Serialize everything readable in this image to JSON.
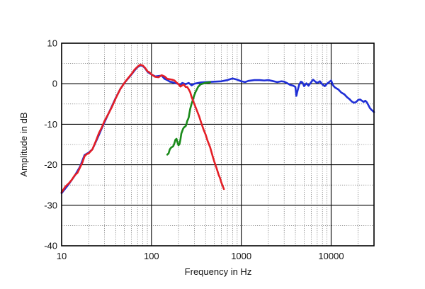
{
  "chart_data": {
    "type": "line",
    "title": "",
    "xlabel": "Frequency  in Hz",
    "ylabel": "Amplitude in dB",
    "xscale": "log",
    "xlim": [
      10,
      30000
    ],
    "ylim": [
      -40,
      10
    ],
    "grid": true,
    "x_tick_labels": [
      {
        "value": 10,
        "label": "10"
      },
      {
        "value": 100,
        "label": "100"
      },
      {
        "value": 1000,
        "label": "1000"
      },
      {
        "value": 10000,
        "label": "10000"
      }
    ],
    "y_tick_labels": [
      {
        "value": 10,
        "label": "10"
      },
      {
        "value": 0,
        "label": "0"
      },
      {
        "value": -10,
        "label": "-10"
      },
      {
        "value": -20,
        "label": "-20"
      },
      {
        "value": -30,
        "label": "-30"
      },
      {
        "value": -40,
        "label": "-40"
      }
    ],
    "series": [
      {
        "color": "#1f2fd6",
        "points": [
          [
            10,
            -27
          ],
          [
            12,
            -24.8
          ],
          [
            14,
            -22.7
          ],
          [
            16,
            -20.5
          ],
          [
            18,
            -17.6
          ],
          [
            20,
            -17.0
          ],
          [
            22,
            -16.2
          ],
          [
            25,
            -13.5
          ],
          [
            28,
            -11.0
          ],
          [
            30,
            -9.5
          ],
          [
            35,
            -6.3
          ],
          [
            40,
            -3.5
          ],
          [
            45,
            -1.3
          ],
          [
            50,
            0.2
          ],
          [
            55,
            1.3
          ],
          [
            60,
            2.3
          ],
          [
            65,
            3.3
          ],
          [
            70,
            4.1
          ],
          [
            75,
            4.5
          ],
          [
            80,
            4.4
          ],
          [
            85,
            3.8
          ],
          [
            90,
            3.0
          ],
          [
            95,
            2.6
          ],
          [
            100,
            2.3
          ],
          [
            110,
            1.8
          ],
          [
            120,
            1.9
          ],
          [
            130,
            2.0
          ],
          [
            140,
            1.2
          ],
          [
            150,
            0.9
          ],
          [
            160,
            0.5
          ],
          [
            170,
            0.4
          ],
          [
            180,
            0.2
          ],
          [
            190,
            0.1
          ],
          [
            200,
            -0.1
          ],
          [
            210,
            -0.3
          ],
          [
            220,
            0.2
          ],
          [
            240,
            -0.1
          ],
          [
            260,
            0.2
          ],
          [
            280,
            -0.4
          ],
          [
            300,
            0.0
          ],
          [
            350,
            0.3
          ],
          [
            400,
            0.4
          ],
          [
            500,
            0.5
          ],
          [
            600,
            0.6
          ],
          [
            700,
            0.9
          ],
          [
            800,
            1.3
          ],
          [
            900,
            1.0
          ],
          [
            1000,
            0.6
          ],
          [
            1100,
            0.4
          ],
          [
            1200,
            0.7
          ],
          [
            1400,
            0.9
          ],
          [
            1600,
            0.9
          ],
          [
            1800,
            0.8
          ],
          [
            2000,
            0.9
          ],
          [
            2200,
            0.7
          ],
          [
            2500,
            0.4
          ],
          [
            2800,
            0.6
          ],
          [
            3000,
            0.5
          ],
          [
            3200,
            0.2
          ],
          [
            3500,
            -0.3
          ],
          [
            3800,
            -0.5
          ],
          [
            4000,
            -0.8
          ],
          [
            4100,
            -3.0
          ],
          [
            4200,
            -2.0
          ],
          [
            4400,
            -0.3
          ],
          [
            4600,
            0.5
          ],
          [
            4800,
            0.3
          ],
          [
            5000,
            -0.6
          ],
          [
            5300,
            0.1
          ],
          [
            5600,
            -0.5
          ],
          [
            6000,
            0.4
          ],
          [
            6300,
            1.0
          ],
          [
            6600,
            0.6
          ],
          [
            7000,
            0.2
          ],
          [
            7500,
            0.6
          ],
          [
            8000,
            -0.2
          ],
          [
            8500,
            -0.6
          ],
          [
            9000,
            0.0
          ],
          [
            9500,
            0.4
          ],
          [
            10000,
            0.8
          ],
          [
            10500,
            -0.4
          ],
          [
            11000,
            -0.9
          ],
          [
            12000,
            -1.4
          ],
          [
            13000,
            -2.2
          ],
          [
            14000,
            -2.6
          ],
          [
            15000,
            -3.3
          ],
          [
            16000,
            -3.8
          ],
          [
            17000,
            -4.4
          ],
          [
            18000,
            -4.7
          ],
          [
            19000,
            -4.5
          ],
          [
            20000,
            -4.0
          ],
          [
            21000,
            -3.9
          ],
          [
            22000,
            -4.2
          ],
          [
            23000,
            -4.5
          ],
          [
            24000,
            -4.2
          ],
          [
            25000,
            -4.6
          ],
          [
            26000,
            -5.3
          ],
          [
            27000,
            -6.0
          ],
          [
            28000,
            -6.4
          ],
          [
            29000,
            -6.7
          ],
          [
            30000,
            -7.0
          ]
        ]
      },
      {
        "color": "#1a8a1a",
        "points": [
          [
            150,
            -17.5
          ],
          [
            155,
            -17.2
          ],
          [
            160,
            -16.2
          ],
          [
            165,
            -15.8
          ],
          [
            170,
            -15.6
          ],
          [
            175,
            -15.4
          ],
          [
            180,
            -14.7
          ],
          [
            185,
            -13.8
          ],
          [
            190,
            -13.6
          ],
          [
            195,
            -14.5
          ],
          [
            200,
            -15.2
          ],
          [
            205,
            -14.9
          ],
          [
            210,
            -13.8
          ],
          [
            215,
            -12.3
          ],
          [
            220,
            -11.7
          ],
          [
            225,
            -11.1
          ],
          [
            230,
            -10.8
          ],
          [
            235,
            -10.6
          ],
          [
            240,
            -10.5
          ],
          [
            245,
            -10.0
          ],
          [
            250,
            -9.2
          ],
          [
            255,
            -8.8
          ],
          [
            260,
            -8.3
          ],
          [
            265,
            -7.2
          ],
          [
            270,
            -6.2
          ],
          [
            280,
            -4.9
          ],
          [
            290,
            -3.9
          ],
          [
            300,
            -2.8
          ],
          [
            310,
            -2.0
          ],
          [
            320,
            -1.4
          ],
          [
            330,
            -0.8
          ],
          [
            340,
            -0.5
          ],
          [
            350,
            -0.2
          ],
          [
            370,
            0.0
          ],
          [
            400,
            0.2
          ],
          [
            450,
            0.4
          ]
        ]
      },
      {
        "color": "#e41f26",
        "points": [
          [
            10,
            -26.8
          ],
          [
            11,
            -25.4
          ],
          [
            12,
            -24.6
          ],
          [
            13,
            -23.7
          ],
          [
            14,
            -22.6
          ],
          [
            15,
            -22.0
          ],
          [
            16,
            -20.7
          ],
          [
            17,
            -19.5
          ],
          [
            18,
            -17.9
          ],
          [
            19,
            -17.4
          ],
          [
            20,
            -17.2
          ],
          [
            22,
            -16.2
          ],
          [
            24,
            -14.2
          ],
          [
            26,
            -12.2
          ],
          [
            28,
            -10.8
          ],
          [
            30,
            -9.2
          ],
          [
            33,
            -7.5
          ],
          [
            36,
            -5.9
          ],
          [
            40,
            -3.6
          ],
          [
            45,
            -1.3
          ],
          [
            50,
            0.2
          ],
          [
            55,
            1.4
          ],
          [
            60,
            2.4
          ],
          [
            65,
            3.5
          ],
          [
            70,
            4.2
          ],
          [
            75,
            4.7
          ],
          [
            80,
            4.5
          ],
          [
            85,
            3.9
          ],
          [
            90,
            3.1
          ],
          [
            95,
            2.8
          ],
          [
            100,
            2.3
          ],
          [
            110,
            1.7
          ],
          [
            120,
            1.6
          ],
          [
            130,
            2.1
          ],
          [
            140,
            1.8
          ],
          [
            150,
            1.2
          ],
          [
            160,
            1.1
          ],
          [
            170,
            1.0
          ],
          [
            180,
            0.8
          ],
          [
            190,
            0.3
          ],
          [
            200,
            -0.1
          ],
          [
            210,
            -0.7
          ],
          [
            220,
            -0.4
          ],
          [
            230,
            -0.2
          ],
          [
            240,
            -0.8
          ],
          [
            250,
            -0.8
          ],
          [
            260,
            -1.4
          ],
          [
            270,
            -2.1
          ],
          [
            280,
            -3.3
          ],
          [
            300,
            -5.0
          ],
          [
            320,
            -6.6
          ],
          [
            340,
            -8.1
          ],
          [
            360,
            -9.8
          ],
          [
            380,
            -11.3
          ],
          [
            400,
            -12.5
          ],
          [
            420,
            -14.0
          ],
          [
            450,
            -15.7
          ],
          [
            480,
            -17.9
          ],
          [
            500,
            -19.2
          ],
          [
            530,
            -20.8
          ],
          [
            560,
            -22.5
          ],
          [
            580,
            -23.3
          ],
          [
            600,
            -24.4
          ],
          [
            620,
            -25.2
          ],
          [
            640,
            -26.0
          ]
        ]
      }
    ]
  }
}
